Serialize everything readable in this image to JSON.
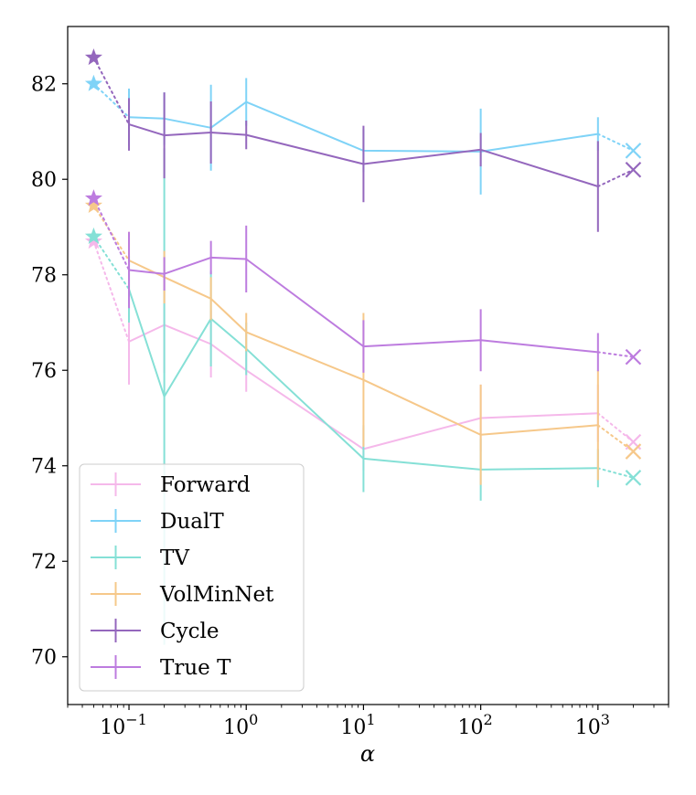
{
  "chart_data": {
    "type": "line",
    "xlabel": "α",
    "ylabel": "",
    "xscale": "log",
    "xlim": [
      0.03,
      4000
    ],
    "ylim": [
      69,
      83.2
    ],
    "yticks": [
      70,
      72,
      74,
      76,
      78,
      80,
      82
    ],
    "ytick_labels": [
      "70",
      "72",
      "74",
      "76",
      "78",
      "80",
      "82"
    ],
    "xticks": [
      0.1,
      1,
      10,
      100,
      1000
    ],
    "xtick_bases": [
      "10",
      "10",
      "10",
      "10",
      "10"
    ],
    "xtick_exps": [
      "−1",
      "0",
      "1",
      "2",
      "3"
    ],
    "grid": false,
    "legend_position": "lower-left",
    "x": [
      0.1,
      0.2,
      0.5,
      1,
      10,
      100,
      1000
    ],
    "star_x": 0.05,
    "cross_x": 2000,
    "series": [
      {
        "name": "Forward",
        "color": "#f5b8ea",
        "values": [
          76.6,
          76.95,
          76.55,
          76.0,
          74.35,
          75.0,
          75.1
        ],
        "errors": [
          0.9,
          1.0,
          0.7,
          0.45,
          0.45,
          0.7,
          0.6
        ],
        "start": 78.7,
        "end": 74.5
      },
      {
        "name": "DualT",
        "color": "#7fd3f7",
        "values": [
          81.3,
          81.27,
          81.08,
          81.62,
          80.6,
          80.58,
          80.95
        ],
        "errors": [
          0.6,
          0.55,
          0.9,
          0.5,
          0.45,
          0.9,
          0.35
        ],
        "start": 82.0,
        "end": 80.6
      },
      {
        "name": "TV",
        "color": "#85e0d6",
        "values": [
          77.7,
          75.45,
          77.08,
          76.45,
          74.15,
          73.92,
          73.95
        ],
        "errors": [
          0.7,
          5.2,
          1.0,
          0.55,
          0.7,
          0.65,
          0.4
        ],
        "start": 78.8,
        "end": 73.75
      },
      {
        "name": "VolMinNet",
        "color": "#f6c88a",
        "values": [
          78.3,
          77.95,
          77.5,
          76.8,
          75.8,
          74.65,
          74.85
        ],
        "errors": [
          0.6,
          0.55,
          0.45,
          0.4,
          1.4,
          1.05,
          1.15
        ],
        "start": 79.45,
        "end": 74.3
      },
      {
        "name": "Cycle",
        "color": "#9467bd",
        "values": [
          81.15,
          80.92,
          80.98,
          80.93,
          80.32,
          80.62,
          79.85
        ],
        "errors": [
          0.55,
          0.9,
          0.65,
          0.3,
          0.8,
          0.35,
          0.95
        ],
        "start": 82.55,
        "end": 80.2
      },
      {
        "name": "True T",
        "color": "#bd7cdf",
        "values": [
          78.1,
          78.02,
          78.36,
          78.33,
          76.5,
          76.63,
          76.38
        ],
        "errors": [
          0.8,
          0.35,
          0.35,
          0.7,
          0.55,
          0.65,
          0.4
        ],
        "start": 79.6,
        "end": 76.28
      }
    ]
  }
}
